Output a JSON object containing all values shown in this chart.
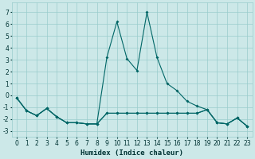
{
  "title": "",
  "xlabel": "Humidex (Indice chaleur)",
  "bg_color": "#cce8e8",
  "grid_color": "#99cccc",
  "line_color": "#006666",
  "xlim": [
    -0.5,
    23.5
  ],
  "ylim": [
    -3.5,
    7.8
  ],
  "yticks": [
    -3,
    -2,
    -1,
    0,
    1,
    2,
    3,
    4,
    5,
    6,
    7
  ],
  "xticks": [
    0,
    1,
    2,
    3,
    4,
    5,
    6,
    7,
    8,
    9,
    10,
    11,
    12,
    13,
    14,
    15,
    16,
    17,
    18,
    19,
    20,
    21,
    22,
    23
  ],
  "line1_x": [
    0,
    1,
    2,
    3,
    4,
    5,
    6,
    7,
    8,
    9,
    10,
    11,
    12,
    13,
    14,
    15,
    16,
    17,
    18,
    19,
    20,
    21,
    22,
    23
  ],
  "line1_y": [
    -0.2,
    -1.3,
    -1.7,
    -1.1,
    -1.8,
    -2.3,
    -2.3,
    -2.4,
    -2.4,
    3.2,
    6.2,
    3.1,
    2.1,
    7.0,
    3.2,
    1.0,
    0.4,
    -0.5,
    -0.9,
    -1.2,
    -2.3,
    -2.4,
    -1.9,
    -2.6
  ],
  "line2_x": [
    0,
    1,
    2,
    3,
    4,
    5,
    6,
    7,
    8,
    9,
    10,
    11,
    12,
    13,
    14,
    15,
    16,
    17,
    18,
    19,
    20,
    21,
    22,
    23
  ],
  "line2_y": [
    -0.2,
    -1.3,
    -1.7,
    -1.1,
    -1.8,
    -2.3,
    -2.3,
    -2.4,
    -2.4,
    -1.5,
    -1.5,
    -1.5,
    -1.5,
    -1.5,
    -1.5,
    -1.5,
    -1.5,
    -1.5,
    -1.5,
    -1.2,
    -2.3,
    -2.4,
    -1.9,
    -2.6
  ],
  "line3_x": [
    0,
    1,
    2,
    3,
    4,
    5,
    6,
    7,
    8,
    9,
    10,
    11,
    12,
    13,
    14,
    15,
    16,
    17,
    18,
    19,
    20,
    21,
    22,
    23
  ],
  "line3_y": [
    -0.2,
    -1.3,
    -1.7,
    -1.1,
    -1.8,
    -2.3,
    -2.3,
    -2.4,
    -2.4,
    -1.5,
    -1.5,
    -1.5,
    -1.5,
    -1.5,
    -1.5,
    -1.5,
    -1.5,
    -1.5,
    -1.5,
    -1.2,
    -2.3,
    -2.4,
    -1.9,
    -2.6
  ]
}
